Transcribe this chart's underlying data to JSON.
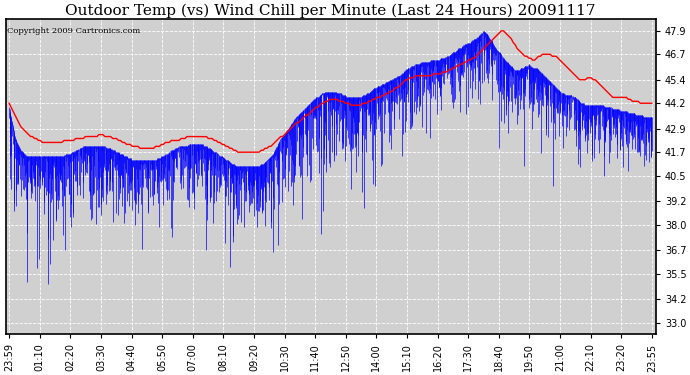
{
  "title": "Outdoor Temp (vs) Wind Chill per Minute (Last 24 Hours) 20091117",
  "copyright": "Copyright 2009 Cartronics.com",
  "yticks": [
    33.0,
    34.2,
    35.5,
    36.7,
    38.0,
    39.2,
    40.5,
    41.7,
    42.9,
    44.2,
    45.4,
    46.7,
    47.9
  ],
  "ylim": [
    32.4,
    48.5
  ],
  "xtick_labels": [
    "23:59",
    "01:10",
    "02:20",
    "03:30",
    "04:40",
    "05:50",
    "07:00",
    "08:10",
    "09:20",
    "10:30",
    "11:40",
    "12:50",
    "14:00",
    "15:10",
    "16:20",
    "17:30",
    "18:40",
    "19:50",
    "21:00",
    "22:10",
    "23:20",
    "23:55"
  ],
  "background_color": "#ffffff",
  "plot_bg_color": "#d0d0d0",
  "grid_color": "#ffffff",
  "title_fontsize": 11,
  "copyright_fontsize": 6,
  "tick_fontsize": 7,
  "line_color_red": "#ff0000",
  "bar_color_blue": "#0000ff",
  "red_line": [
    44.2,
    44.0,
    43.8,
    43.6,
    43.4,
    43.2,
    43.0,
    42.9,
    42.8,
    42.7,
    42.6,
    42.5,
    42.5,
    42.4,
    42.4,
    42.3,
    42.3,
    42.2,
    42.2,
    42.2,
    42.2,
    42.2,
    42.2,
    42.2,
    42.2,
    42.2,
    42.2,
    42.2,
    42.3,
    42.3,
    42.3,
    42.3,
    42.3,
    42.3,
    42.4,
    42.4,
    42.4,
    42.4,
    42.4,
    42.5,
    42.5,
    42.5,
    42.5,
    42.5,
    42.5,
    42.5,
    42.6,
    42.6,
    42.6,
    42.5,
    42.5,
    42.5,
    42.5,
    42.4,
    42.4,
    42.4,
    42.3,
    42.3,
    42.2,
    42.2,
    42.1,
    42.1,
    42.1,
    42.0,
    42.0,
    42.0,
    42.0,
    41.9,
    41.9,
    41.9,
    41.9,
    41.9,
    41.9,
    41.9,
    41.9,
    42.0,
    42.0,
    42.0,
    42.1,
    42.1,
    42.2,
    42.2,
    42.2,
    42.3,
    42.3,
    42.3,
    42.3,
    42.3,
    42.4,
    42.4,
    42.4,
    42.5,
    42.5,
    42.5,
    42.5,
    42.5,
    42.5,
    42.5,
    42.5,
    42.5,
    42.5,
    42.5,
    42.4,
    42.4,
    42.4,
    42.3,
    42.3,
    42.2,
    42.2,
    42.1,
    42.1,
    42.0,
    42.0,
    41.9,
    41.9,
    41.8,
    41.8,
    41.7,
    41.7,
    41.7,
    41.7,
    41.7,
    41.7,
    41.7,
    41.7,
    41.7,
    41.7,
    41.7,
    41.7,
    41.8,
    41.8,
    41.9,
    41.9,
    42.0,
    42.0,
    42.1,
    42.2,
    42.3,
    42.4,
    42.5,
    42.5,
    42.6,
    42.7,
    42.8,
    42.9,
    43.0,
    43.1,
    43.2,
    43.2,
    43.3,
    43.4,
    43.5,
    43.6,
    43.6,
    43.7,
    43.8,
    43.9,
    44.0,
    44.0,
    44.1,
    44.2,
    44.2,
    44.3,
    44.3,
    44.4,
    44.4,
    44.4,
    44.4,
    44.4,
    44.3,
    44.3,
    44.3,
    44.2,
    44.2,
    44.2,
    44.1,
    44.1,
    44.1,
    44.1,
    44.1,
    44.1,
    44.2,
    44.2,
    44.2,
    44.3,
    44.3,
    44.4,
    44.4,
    44.5,
    44.5,
    44.5,
    44.6,
    44.6,
    44.7,
    44.7,
    44.8,
    44.8,
    44.9,
    45.0,
    45.0,
    45.1,
    45.2,
    45.3,
    45.4,
    45.4,
    45.5,
    45.5,
    45.5,
    45.6,
    45.6,
    45.6,
    45.6,
    45.6,
    45.6,
    45.6,
    45.6,
    45.6,
    45.7,
    45.7,
    45.7,
    45.7,
    45.7,
    45.8,
    45.8,
    45.8,
    45.9,
    45.9,
    46.0,
    46.0,
    46.1,
    46.1,
    46.2,
    46.2,
    46.3,
    46.3,
    46.4,
    46.4,
    46.5,
    46.5,
    46.6,
    46.7,
    46.8,
    46.9,
    47.0,
    47.1,
    47.2,
    47.3,
    47.4,
    47.5,
    47.6,
    47.7,
    47.8,
    47.9,
    47.9,
    47.8,
    47.7,
    47.6,
    47.5,
    47.3,
    47.2,
    47.0,
    46.9,
    46.8,
    46.7,
    46.6,
    46.6,
    46.5,
    46.5,
    46.4,
    46.4,
    46.5,
    46.6,
    46.6,
    46.7,
    46.7,
    46.7,
    46.7,
    46.7,
    46.6,
    46.6,
    46.6,
    46.5,
    46.4,
    46.3,
    46.2,
    46.1,
    46.0,
    45.9,
    45.8,
    45.7,
    45.6,
    45.5,
    45.4,
    45.4,
    45.4,
    45.4,
    45.5,
    45.5,
    45.5,
    45.4,
    45.4,
    45.3,
    45.2,
    45.1,
    45.0,
    44.9,
    44.8,
    44.7,
    44.6,
    44.5,
    44.5,
    44.5,
    44.5,
    44.5,
    44.5,
    44.5,
    44.5,
    44.4,
    44.4,
    44.3,
    44.3,
    44.3,
    44.3,
    44.2,
    44.2,
    44.2,
    44.2,
    44.2,
    44.2,
    44.2
  ],
  "wc_base": [
    44.0,
    43.5,
    43.0,
    42.5,
    42.2,
    42.0,
    41.8,
    41.7,
    41.6,
    41.5,
    41.5,
    41.5,
    41.5,
    41.5,
    41.5,
    41.5,
    41.5,
    41.5,
    41.5,
    41.5,
    41.5,
    41.5,
    41.5,
    41.5,
    41.5,
    41.5,
    41.5,
    41.5,
    41.5,
    41.6,
    41.6,
    41.6,
    41.7,
    41.7,
    41.8,
    41.8,
    41.9,
    41.9,
    42.0,
    42.0,
    42.0,
    42.0,
    42.0,
    42.0,
    42.0,
    42.0,
    42.0,
    42.0,
    42.0,
    42.0,
    41.9,
    41.9,
    41.9,
    41.8,
    41.8,
    41.7,
    41.7,
    41.6,
    41.6,
    41.5,
    41.5,
    41.4,
    41.4,
    41.3,
    41.3,
    41.3,
    41.3,
    41.3,
    41.3,
    41.3,
    41.3,
    41.3,
    41.3,
    41.3,
    41.3,
    41.3,
    41.4,
    41.4,
    41.5,
    41.5,
    41.6,
    41.6,
    41.7,
    41.8,
    41.8,
    41.9,
    41.9,
    42.0,
    42.0,
    42.0,
    42.0,
    42.0,
    42.1,
    42.1,
    42.1,
    42.1,
    42.1,
    42.1,
    42.1,
    42.1,
    42.0,
    42.0,
    41.9,
    41.9,
    41.8,
    41.7,
    41.7,
    41.6,
    41.5,
    41.5,
    41.4,
    41.3,
    41.3,
    41.2,
    41.1,
    41.1,
    41.0,
    41.0,
    41.0,
    41.0,
    41.0,
    41.0,
    41.0,
    41.0,
    41.0,
    41.0,
    41.0,
    41.0,
    41.0,
    41.1,
    41.1,
    41.2,
    41.3,
    41.4,
    41.5,
    41.6,
    41.8,
    42.0,
    42.2,
    42.4,
    42.5,
    42.6,
    42.8,
    42.9,
    43.1,
    43.2,
    43.4,
    43.5,
    43.6,
    43.7,
    43.8,
    43.9,
    44.0,
    44.1,
    44.2,
    44.3,
    44.4,
    44.5,
    44.5,
    44.6,
    44.7,
    44.7,
    44.8,
    44.8,
    44.8,
    44.8,
    44.8,
    44.8,
    44.7,
    44.7,
    44.7,
    44.6,
    44.6,
    44.5,
    44.5,
    44.5,
    44.5,
    44.5,
    44.5,
    44.5,
    44.5,
    44.6,
    44.6,
    44.7,
    44.7,
    44.8,
    44.9,
    45.0,
    45.0,
    45.1,
    45.1,
    45.2,
    45.2,
    45.3,
    45.3,
    45.4,
    45.4,
    45.5,
    45.5,
    45.6,
    45.6,
    45.7,
    45.8,
    45.9,
    46.0,
    46.0,
    46.1,
    46.1,
    46.2,
    46.2,
    46.2,
    46.3,
    46.3,
    46.3,
    46.3,
    46.3,
    46.4,
    46.4,
    46.4,
    46.4,
    46.4,
    46.5,
    46.5,
    46.5,
    46.6,
    46.6,
    46.7,
    46.8,
    46.8,
    46.9,
    47.0,
    47.0,
    47.1,
    47.2,
    47.2,
    47.3,
    47.3,
    47.4,
    47.5,
    47.5,
    47.6,
    47.7,
    47.8,
    47.9,
    47.8,
    47.7,
    47.5,
    47.4,
    47.2,
    47.0,
    46.9,
    46.8,
    46.7,
    46.5,
    46.4,
    46.3,
    46.2,
    46.1,
    46.0,
    45.9,
    45.9,
    45.9,
    46.0,
    46.0,
    46.1,
    46.1,
    46.2,
    46.1,
    46.0,
    46.0,
    46.0,
    45.9,
    45.8,
    45.7,
    45.6,
    45.5,
    45.4,
    45.3,
    45.2,
    45.1,
    45.0,
    44.9,
    44.8,
    44.7,
    44.7,
    44.6,
    44.6,
    44.6,
    44.6,
    44.5,
    44.5,
    44.4,
    44.3,
    44.2,
    44.2,
    44.1,
    44.1,
    44.1,
    44.1,
    44.1,
    44.1,
    44.1,
    44.1,
    44.1,
    44.1,
    44.0,
    44.0,
    44.0,
    44.0,
    43.9,
    43.9,
    43.9,
    43.9,
    43.8,
    43.8,
    43.8,
    43.8,
    43.7,
    43.7,
    43.7,
    43.7,
    43.6,
    43.6,
    43.6,
    43.6,
    43.5,
    43.5,
    43.5,
    43.5,
    43.5
  ],
  "wc_volatility": [
    3.5,
    3.5,
    3.5,
    3.5,
    3.5,
    3.5,
    3.5,
    3.5,
    3.5,
    3.5,
    3.5,
    3.5,
    3.5,
    3.5,
    3.5,
    3.5,
    3.5,
    3.5,
    3.5,
    3.5,
    3.5,
    3.5,
    3.5,
    3.5,
    3.5,
    3.5,
    3.5,
    3.5,
    3.5,
    3.5,
    3.5,
    3.5,
    3.5,
    3.5,
    3.5,
    3.5,
    3.5,
    3.5,
    3.5,
    3.5,
    3.5,
    3.5,
    3.5,
    3.5,
    3.5,
    3.5,
    3.5,
    3.5,
    3.5,
    3.5,
    3.0,
    3.0,
    3.0,
    3.0,
    3.0,
    3.0,
    3.0,
    3.0,
    3.0,
    3.0,
    3.0,
    3.0,
    3.0,
    3.0,
    3.0,
    3.0,
    3.0,
    3.0,
    3.0,
    3.0,
    3.0,
    3.0,
    3.0,
    3.0,
    3.0,
    3.0,
    3.0,
    3.0,
    3.0,
    3.0,
    3.0,
    3.0,
    3.0,
    3.0,
    3.0,
    3.0,
    3.0,
    3.0,
    3.0,
    3.0,
    3.0,
    3.0,
    3.0,
    3.0,
    3.0,
    3.0,
    3.0,
    3.0,
    3.0,
    3.0,
    3.0,
    3.0,
    3.0,
    3.0,
    3.0,
    3.0,
    3.0,
    3.0,
    3.0,
    3.0,
    3.0,
    3.0,
    3.0,
    3.0,
    3.0,
    3.0,
    3.0,
    3.0,
    3.0,
    3.0,
    3.0,
    3.0,
    3.0,
    3.0,
    3.0,
    3.0,
    3.0,
    3.0,
    3.0,
    3.0,
    3.0,
    3.0,
    3.0,
    3.5,
    3.5,
    3.5,
    3.5,
    3.5,
    3.5,
    3.5,
    3.5,
    3.5,
    3.5,
    3.5,
    3.5,
    3.5,
    3.5,
    3.5,
    3.5,
    3.5,
    3.5,
    3.5,
    3.5,
    3.5,
    3.5,
    3.5,
    3.5,
    3.5,
    3.5,
    3.5,
    3.5,
    3.5,
    3.5,
    3.5,
    3.5,
    3.5,
    3.5,
    3.5,
    3.5,
    3.5,
    3.5,
    3.5,
    3.5,
    3.5,
    3.5,
    3.5,
    3.5,
    3.5,
    3.5,
    3.5,
    3.5,
    3.5,
    3.5,
    3.5,
    3.5,
    3.5,
    3.5,
    3.5,
    3.5,
    3.5,
    3.5,
    3.5,
    3.5,
    3.5,
    3.5,
    3.5,
    3.5,
    3.5,
    3.5,
    3.5,
    3.5,
    3.5,
    3.5,
    3.5,
    3.5,
    3.5,
    3.5,
    3.5,
    3.5,
    3.5,
    3.0,
    3.0,
    3.0,
    3.0,
    3.0,
    3.0,
    3.0,
    3.0,
    3.0,
    3.0,
    3.0,
    3.0,
    3.0,
    3.0,
    3.0,
    3.0,
    3.0,
    3.0,
    3.0,
    3.0,
    3.0,
    3.0,
    3.0,
    3.0,
    3.0,
    3.0,
    3.0,
    3.0,
    3.0,
    3.0,
    3.0,
    3.0,
    3.0,
    3.0,
    3.0,
    3.5,
    3.5,
    3.5,
    3.5,
    3.5,
    3.5,
    3.5,
    3.5,
    3.5,
    2.5,
    2.5,
    2.5,
    2.5,
    2.5,
    2.5,
    2.5,
    2.5,
    2.5,
    2.5,
    2.5,
    2.5,
    2.5,
    2.5,
    2.5,
    2.5,
    2.5,
    2.5,
    2.5,
    2.5,
    2.5,
    2.5,
    2.5,
    2.5,
    2.5,
    2.5,
    2.5,
    2.5,
    2.5,
    2.5,
    2.5,
    2.5,
    2.5,
    2.5,
    2.5,
    2.5,
    2.5,
    2.5,
    2.5,
    2.5,
    2.5,
    2.5,
    2.5,
    2.5,
    2.5,
    2.5,
    2.5,
    2.5,
    2.5,
    2.5,
    2.5,
    2.5,
    2.5,
    2.5,
    2.5,
    2.5,
    2.5,
    2.5,
    2.5,
    2.5,
    2.5,
    2.5,
    2.5,
    2.5,
    2.5,
    2.5,
    2.5,
    2.5,
    2.5,
    2.5,
    2.5,
    2.5,
    2.5,
    2.5,
    2.5,
    2.5
  ]
}
